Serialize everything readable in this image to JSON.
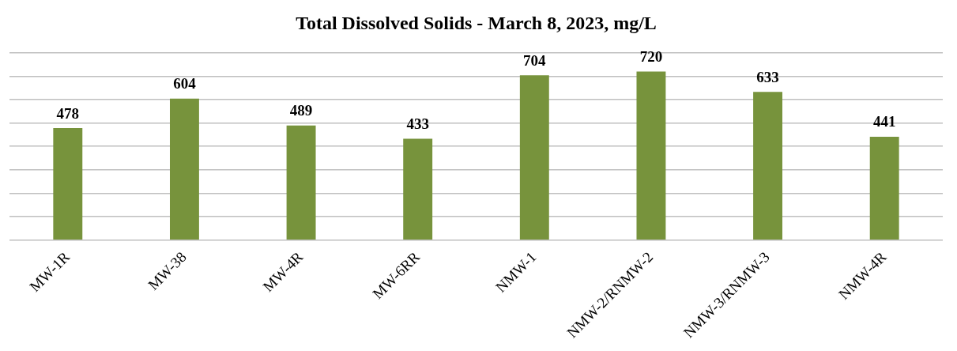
{
  "chart_data": {
    "type": "bar",
    "title": "Total Dissolved Solids - March 8, 2023, mg/L",
    "categories": [
      "MW-1R",
      "MW-38",
      "MW-4R",
      "MW-6RR",
      "NMW-1",
      "NMW-2/RNMW-2",
      "NMW-3/RNMW-3",
      "NMW-4R"
    ],
    "values": [
      478,
      604,
      489,
      433,
      704,
      720,
      633,
      441
    ],
    "color": "#77933c",
    "ylim": [
      0,
      800
    ],
    "yticks": [
      {
        "value": 0,
        "label": null
      },
      {
        "value": 100,
        "label": null
      },
      {
        "value": 200,
        "label": null
      },
      {
        "value": 300,
        "label": null
      },
      {
        "value": 400,
        "label": null
      },
      {
        "value": 500,
        "label": null
      },
      {
        "value": 600,
        "label": null
      },
      {
        "value": 700,
        "label": null
      },
      {
        "value": 800,
        "label": null
      }
    ],
    "grid": "y",
    "tick_labels": "x",
    "data_labels": true,
    "legend": false
  }
}
